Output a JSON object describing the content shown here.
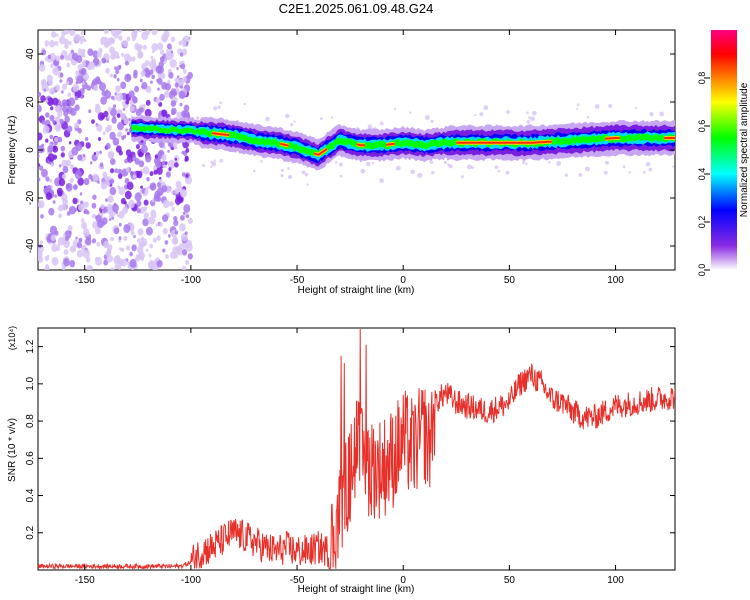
{
  "title": "C2E1.2025.061.09.48.G24",
  "chart_data": [
    {
      "type": "heatmap",
      "xlabel": "Height of straight line (km)",
      "ylabel": "Frequency (Hz)",
      "xlim": [
        -172,
        128
      ],
      "ylim": [
        -50,
        50
      ],
      "xticks": [
        -150,
        -100,
        -50,
        0,
        50,
        100
      ],
      "yticks": [
        -40,
        -20,
        0,
        20,
        40
      ],
      "colorbar": {
        "label": "Normalized spectral amplitude",
        "ticks": [
          "0.0",
          "0.2",
          "0.4",
          "0.6",
          "0.8"
        ],
        "range": [
          0,
          1
        ],
        "colors": [
          "#ffffff",
          "#8a2be2",
          "#0000ff",
          "#00ffff",
          "#00ff00",
          "#ffff00",
          "#ff8000",
          "#ff0000",
          "#ff0080"
        ]
      },
      "ridge": {
        "x": [
          -125,
          -100,
          -90,
          -80,
          -70,
          -60,
          -50,
          -40,
          -30,
          -20,
          -10,
          0,
          10,
          20,
          40,
          60,
          80,
          100,
          128
        ],
        "y": [
          9,
          8,
          7,
          6,
          4,
          3,
          1,
          -2,
          4,
          2,
          2,
          3,
          2,
          3,
          3,
          3,
          4,
          5,
          5
        ]
      },
      "noise_region_x": [
        -172,
        -100
      ]
    },
    {
      "type": "line",
      "xlabel": "Height of straight line (km)",
      "ylabel": "SNR (10 * v/v)",
      "y_multiplier": "(x10⁴)",
      "xlim": [
        -172,
        128
      ],
      "ylim": [
        0,
        1.3
      ],
      "xticks": [
        -150,
        -100,
        -50,
        0,
        50,
        100
      ],
      "yticks": [
        "0.2",
        "0.4",
        "0.6",
        "0.8",
        "1.0",
        "1.2"
      ],
      "color": "#e8302a",
      "series": [
        {
          "x": [
            -172,
            -150,
            -120,
            -105,
            -100,
            -95,
            -90,
            -85,
            -80,
            -75,
            -70,
            -65,
            -60,
            -55,
            -50,
            -45,
            -40,
            -35,
            -30,
            -25,
            -22,
            -20,
            -15,
            -10,
            -5,
            0,
            5,
            10,
            12,
            15,
            20,
            25,
            30,
            40,
            50,
            55,
            60,
            65,
            70,
            75,
            80,
            85,
            90,
            95,
            100,
            110,
            120,
            128
          ],
          "y": [
            0.02,
            0.02,
            0.02,
            0.02,
            0.04,
            0.1,
            0.12,
            0.16,
            0.2,
            0.18,
            0.15,
            0.12,
            0.1,
            0.12,
            0.1,
            0.1,
            0.12,
            0.1,
            0.3,
            0.5,
            0.7,
            0.6,
            0.55,
            0.55,
            0.6,
            0.7,
            0.65,
            0.75,
            0.65,
            0.9,
            0.95,
            0.9,
            0.88,
            0.85,
            0.9,
            1.0,
            1.05,
            1.0,
            0.92,
            0.9,
            0.85,
            0.82,
            0.82,
            0.85,
            0.88,
            0.9,
            0.92,
            0.93
          ]
        }
      ]
    }
  ]
}
